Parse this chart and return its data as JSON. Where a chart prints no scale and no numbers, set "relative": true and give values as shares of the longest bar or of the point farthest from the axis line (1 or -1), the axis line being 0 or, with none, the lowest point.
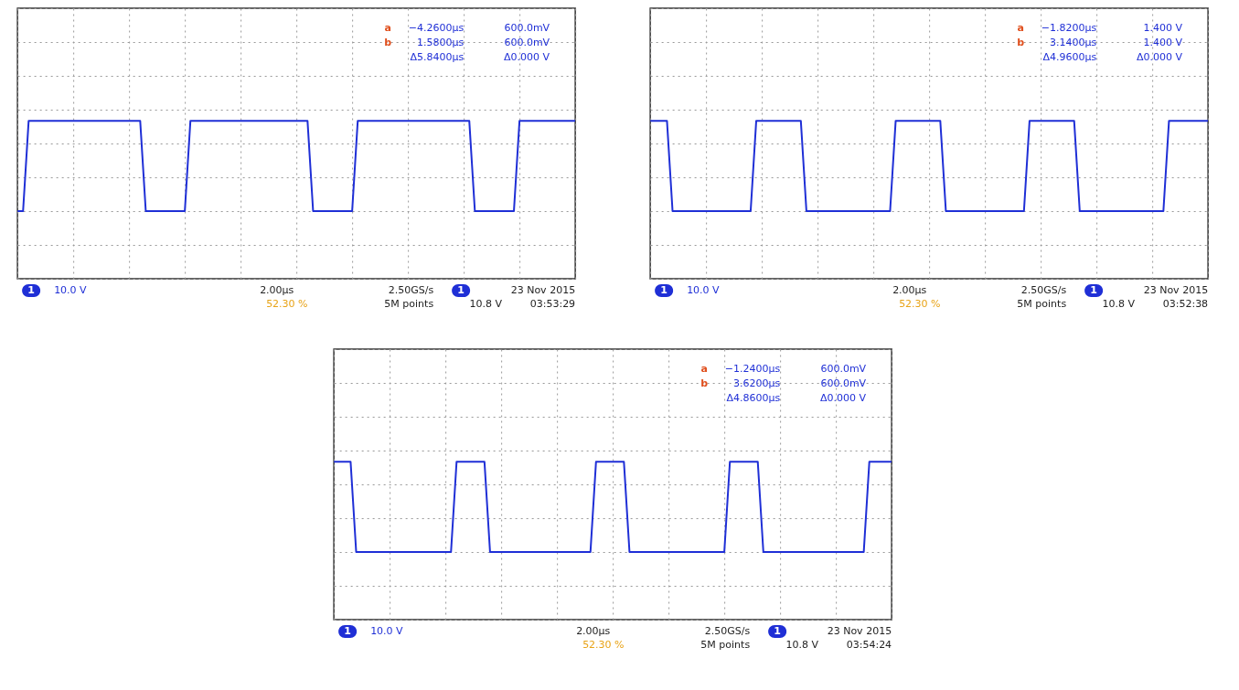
{
  "chart_data": [
    {
      "type": "line",
      "relative": true,
      "tick_labels": false,
      "grid": true,
      "categories": [
        null,
        null,
        null,
        null,
        null,
        null,
        null,
        null,
        null,
        null,
        null,
        null,
        null,
        null,
        null,
        null,
        null,
        null,
        null,
        null,
        null,
        null,
        null,
        null,
        null,
        null,
        null,
        null,
        null,
        null,
        null,
        null,
        null,
        null,
        null,
        null,
        null,
        null,
        null,
        null,
        null,
        null,
        null,
        null,
        null,
        null,
        null,
        null,
        null,
        null,
        null,
        null,
        null,
        null,
        null,
        null,
        null,
        null,
        null,
        null,
        null,
        null,
        null,
        null,
        null,
        null,
        null,
        null,
        null,
        null,
        null,
        null,
        null,
        null,
        null,
        null,
        null,
        null,
        null,
        null,
        null,
        null,
        null,
        null,
        null,
        null,
        null,
        null,
        null,
        null,
        null,
        null,
        null,
        null,
        null,
        null,
        null,
        null,
        null,
        null,
        null
      ],
      "series": [
        {
          "color": "#1f2fd6",
          "values": [
            0,
            0,
            1,
            1,
            1,
            1,
            1,
            1,
            1,
            1,
            1,
            1,
            1,
            1,
            1,
            1,
            1,
            1,
            1,
            1,
            1,
            1,
            1,
            0,
            0,
            0,
            0,
            0,
            0,
            0,
            0,
            1,
            1,
            1,
            1,
            1,
            1,
            1,
            1,
            1,
            1,
            1,
            1,
            1,
            1,
            1,
            1,
            1,
            1,
            1,
            1,
            1,
            1,
            0,
            0,
            0,
            0,
            0,
            0,
            0,
            0,
            1,
            1,
            1,
            1,
            1,
            1,
            1,
            1,
            1,
            1,
            1,
            1,
            1,
            1,
            1,
            1,
            1,
            1,
            1,
            1,
            1,
            0,
            0,
            0,
            0,
            0,
            0,
            0,
            0,
            1,
            1,
            1,
            1,
            1,
            1,
            1,
            1,
            1,
            1,
            1
          ]
        }
      ],
      "annotations": [
        "a",
        "−4.2600µs",
        "600.0mV",
        "b",
        "1.5800µs",
        "600.0mV",
        "Δ5.8400µs",
        "Δ0.000 V",
        "1",
        "10.0 V",
        "2.00µs",
        "52.30 %",
        "2.50GS/s",
        "5M points",
        "1",
        "10.8 V",
        "23 Nov 2015",
        "03:53:29"
      ]
    },
    {
      "type": "line",
      "relative": true,
      "tick_labels": false,
      "grid": true,
      "categories": [
        null,
        null,
        null,
        null,
        null,
        null,
        null,
        null,
        null,
        null,
        null,
        null,
        null,
        null,
        null,
        null,
        null,
        null,
        null,
        null,
        null,
        null,
        null,
        null,
        null,
        null,
        null,
        null,
        null,
        null,
        null,
        null,
        null,
        null,
        null,
        null,
        null,
        null,
        null,
        null,
        null,
        null,
        null,
        null,
        null,
        null,
        null,
        null,
        null,
        null,
        null,
        null,
        null,
        null,
        null,
        null,
        null,
        null,
        null,
        null,
        null,
        null,
        null,
        null,
        null,
        null,
        null,
        null,
        null,
        null,
        null,
        null,
        null,
        null,
        null,
        null,
        null,
        null,
        null,
        null,
        null,
        null,
        null,
        null,
        null,
        null,
        null,
        null,
        null,
        null,
        null,
        null,
        null,
        null,
        null,
        null,
        null,
        null,
        null,
        null,
        null
      ],
      "series": [
        {
          "color": "#1f2fd6",
          "values": [
            1,
            1,
            1,
            1,
            0,
            0,
            0,
            0,
            0,
            0,
            0,
            0,
            0,
            0,
            0,
            0,
            0,
            0,
            0,
            1,
            1,
            1,
            1,
            1,
            1,
            1,
            1,
            1,
            0,
            0,
            0,
            0,
            0,
            0,
            0,
            0,
            0,
            0,
            0,
            0,
            0,
            0,
            0,
            0,
            1,
            1,
            1,
            1,
            1,
            1,
            1,
            1,
            1,
            0,
            0,
            0,
            0,
            0,
            0,
            0,
            0,
            0,
            0,
            0,
            0,
            0,
            0,
            0,
            1,
            1,
            1,
            1,
            1,
            1,
            1,
            1,
            1,
            0,
            0,
            0,
            0,
            0,
            0,
            0,
            0,
            0,
            0,
            0,
            0,
            0,
            0,
            0,
            0,
            1,
            1,
            1,
            1,
            1,
            1,
            1,
            1
          ]
        }
      ],
      "annotations": [
        "a",
        "−1.8200µs",
        "1.400 V",
        "b",
        "3.1400µs",
        "1.400 V",
        "Δ4.9600µs",
        "Δ0.000 V",
        "1",
        "10.0 V",
        "2.00µs",
        "52.30 %",
        "2.50GS/s",
        "5M points",
        "1",
        "10.8 V",
        "23 Nov 2015",
        "03:52:38"
      ]
    },
    {
      "type": "line",
      "relative": true,
      "tick_labels": false,
      "grid": true,
      "categories": [
        null,
        null,
        null,
        null,
        null,
        null,
        null,
        null,
        null,
        null,
        null,
        null,
        null,
        null,
        null,
        null,
        null,
        null,
        null,
        null,
        null,
        null,
        null,
        null,
        null,
        null,
        null,
        null,
        null,
        null,
        null,
        null,
        null,
        null,
        null,
        null,
        null,
        null,
        null,
        null,
        null,
        null,
        null,
        null,
        null,
        null,
        null,
        null,
        null,
        null,
        null,
        null,
        null,
        null,
        null,
        null,
        null,
        null,
        null,
        null,
        null,
        null,
        null,
        null,
        null,
        null,
        null,
        null,
        null,
        null,
        null,
        null,
        null,
        null,
        null,
        null,
        null,
        null,
        null,
        null,
        null,
        null,
        null,
        null,
        null,
        null,
        null,
        null,
        null,
        null,
        null,
        null,
        null,
        null,
        null,
        null,
        null,
        null,
        null,
        null,
        null
      ],
      "series": [
        {
          "color": "#1f2fd6",
          "values": [
            1,
            1,
            1,
            1,
            0,
            0,
            0,
            0,
            0,
            0,
            0,
            0,
            0,
            0,
            0,
            0,
            0,
            0,
            0,
            0,
            0,
            0,
            1,
            1,
            1,
            1,
            1,
            1,
            0,
            0,
            0,
            0,
            0,
            0,
            0,
            0,
            0,
            0,
            0,
            0,
            0,
            0,
            0,
            0,
            0,
            0,
            0,
            1,
            1,
            1,
            1,
            1,
            1,
            0,
            0,
            0,
            0,
            0,
            0,
            0,
            0,
            0,
            0,
            0,
            0,
            0,
            0,
            0,
            0,
            0,
            0,
            1,
            1,
            1,
            1,
            1,
            1,
            0,
            0,
            0,
            0,
            0,
            0,
            0,
            0,
            0,
            0,
            0,
            0,
            0,
            0,
            0,
            0,
            0,
            0,
            0,
            1,
            1,
            1,
            1,
            1
          ]
        }
      ],
      "annotations": [
        "a",
        "−1.2400µs",
        "600.0mV",
        "b",
        "3.6200µs",
        "600.0mV",
        "Δ4.8600µs",
        "Δ0.000 V",
        "1",
        "10.0 V",
        "2.00µs",
        "52.30 %",
        "2.50GS/s",
        "5M points",
        "1",
        "10.8 V",
        "23 Nov 2015",
        "03:54:24"
      ]
    }
  ]
}
